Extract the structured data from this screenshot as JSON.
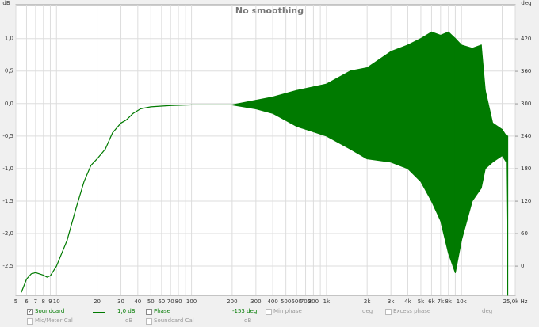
{
  "chart_data": {
    "type": "band",
    "title": "No smoothing",
    "y_label": "dB",
    "y2_label": "deg",
    "xscale": "log",
    "xlim": [
      5,
      25000
    ],
    "ylim": [
      -2.95,
      1.52
    ],
    "y2lim": [
      -54,
      483
    ],
    "grid": true,
    "xticks": [
      5,
      6,
      7,
      8,
      9,
      10,
      20,
      30,
      40,
      50,
      60,
      70,
      80,
      100,
      200,
      300,
      400,
      500,
      600,
      700,
      800,
      {
        "value": 1000,
        "label": "1k"
      },
      {
        "value": 2000,
        "label": "2k"
      },
      {
        "value": 3000,
        "label": "3k"
      },
      {
        "value": 4000,
        "label": "4k"
      },
      {
        "value": 5000,
        "label": "5k"
      },
      {
        "value": 6000,
        "label": "6k"
      },
      {
        "value": 7000,
        "label": "7k"
      },
      {
        "value": 8000,
        "label": "8k"
      },
      {
        "value": 10000,
        "label": "10k"
      },
      {
        "value": 25000,
        "label": "25,0k Hz"
      }
    ],
    "minor_xticks": [
      90,
      900,
      9000,
      20000
    ],
    "yticks": [
      {
        "value": 1,
        "label": "1,0"
      },
      {
        "value": 0.5,
        "label": "0,5"
      },
      {
        "value": 0,
        "label": "0,0"
      },
      {
        "value": -0.5,
        "label": "-0,5"
      },
      {
        "value": -1,
        "label": "-1,0"
      },
      {
        "value": -1.5,
        "label": "-1,5"
      },
      {
        "value": -2,
        "label": "-2,0"
      },
      {
        "value": -2.5,
        "label": "-2,5"
      }
    ],
    "y2ticks": [
      420,
      360,
      300,
      240,
      180,
      120,
      60,
      0
    ],
    "series": [
      {
        "name": "Soundcard",
        "color": "#007a00",
        "x": [
          5.5,
          6,
          6.5,
          7,
          8,
          8.5,
          9,
          10,
          12,
          14,
          16,
          18,
          20,
          23,
          26,
          30,
          33,
          37,
          42,
          50,
          70,
          100,
          200,
          300,
          400,
          600,
          1000,
          1500,
          2000,
          3000,
          4000,
          5000,
          6000,
          7000,
          8000,
          9000,
          10000,
          12000,
          14000,
          15000,
          17000,
          20000,
          21500,
          22000
        ],
        "high": [
          -2.9,
          -2.7,
          -2.62,
          -2.6,
          -2.64,
          -2.67,
          -2.65,
          -2.5,
          -2.1,
          -1.6,
          -1.2,
          -0.95,
          -0.85,
          -0.7,
          -0.45,
          -0.3,
          -0.25,
          -0.15,
          -0.08,
          -0.05,
          -0.03,
          -0.02,
          -0.02,
          0.05,
          0.1,
          0.2,
          0.3,
          0.5,
          0.55,
          0.8,
          0.9,
          1.0,
          1.1,
          1.05,
          1.1,
          1.0,
          0.9,
          0.85,
          0.9,
          0.2,
          -0.3,
          -0.4,
          -0.5,
          -0.5
        ],
        "low": [
          -2.9,
          -2.7,
          -2.62,
          -2.6,
          -2.64,
          -2.67,
          -2.65,
          -2.5,
          -2.1,
          -1.6,
          -1.2,
          -0.95,
          -0.85,
          -0.7,
          -0.45,
          -0.3,
          -0.25,
          -0.15,
          -0.08,
          -0.05,
          -0.03,
          -0.02,
          -0.02,
          -0.08,
          -0.15,
          -0.35,
          -0.5,
          -0.7,
          -0.85,
          -0.9,
          -1.0,
          -1.2,
          -1.5,
          -1.8,
          -2.3,
          -2.6,
          -2.1,
          -1.5,
          -1.3,
          -1.0,
          -0.9,
          -0.8,
          -0.9,
          -2.95
        ]
      }
    ]
  },
  "panel": {
    "soundcard_level": "1,0 dB",
    "phase": "Phase",
    "phase_value": "-153 deg",
    "min_phase": "Min phase",
    "min_phase_unit": "deg",
    "excess_phase": "Excess phase",
    "excess_phase_unit": "deg",
    "mic_cal": "Mic/Meter Cal",
    "mic_cal_unit": "dB",
    "soundcard_cal": "Soundcard Cal",
    "soundcard_cal_unit": "dB"
  }
}
